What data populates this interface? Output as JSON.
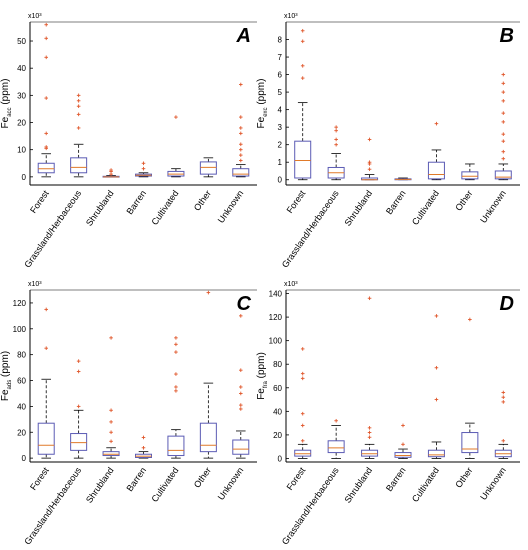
{
  "figure": {
    "type": "boxplot-grid",
    "box_color": "#5b5bb4",
    "median_color": "#e07a2a",
    "outlier_color": "#e0562a",
    "axis_color": "#000000"
  },
  "chart_data": [
    {
      "type": "box",
      "panel_label": "A",
      "ylabel_main": "Fe",
      "ylabel_sub": "acc",
      "ylabel_unit": " (ppm)",
      "scale_note": "x10³",
      "categories": [
        "Forest",
        "Grassland/Herbaceous",
        "Shrubland",
        "Barren",
        "Cultivated",
        "Other",
        "Unknown"
      ],
      "yticks": [
        0,
        10,
        20,
        30,
        40,
        50
      ],
      "ylim": [
        -3,
        57
      ],
      "boxes": [
        {
          "whisker_low": 0,
          "q1": 1.5,
          "median": 3.0,
          "q3": 5.0,
          "whisker_high": 8.5,
          "outliers": [
            10.5,
            11,
            16,
            29,
            44,
            51,
            56
          ]
        },
        {
          "whisker_low": 0,
          "q1": 1.5,
          "median": 3.5,
          "q3": 7.0,
          "whisker_high": 12.0,
          "outliers": [
            18,
            23,
            26,
            28,
            30
          ]
        },
        {
          "whisker_low": 0,
          "q1": 0,
          "median": 0,
          "q3": 0.2,
          "whisker_high": 0.5,
          "outliers": [
            1,
            2,
            2.5
          ]
        },
        {
          "whisker_low": 0,
          "q1": 0.3,
          "median": 0.6,
          "q3": 1.0,
          "whisker_high": 1.5,
          "outliers": [
            3,
            5
          ]
        },
        {
          "whisker_low": 0,
          "q1": 0.3,
          "median": 1.0,
          "q3": 2.0,
          "whisker_high": 3.0,
          "outliers": [
            22
          ]
        },
        {
          "whisker_low": 0,
          "q1": 1.0,
          "median": 3.5,
          "q3": 5.5,
          "whisker_high": 7.0,
          "outliers": []
        },
        {
          "whisker_low": 0,
          "q1": 0.3,
          "median": 1.0,
          "q3": 3.0,
          "whisker_high": 4.5,
          "outliers": [
            6,
            8,
            10,
            12,
            16,
            18,
            22,
            34
          ]
        }
      ]
    },
    {
      "type": "box",
      "panel_label": "B",
      "ylabel_main": "Fe",
      "ylabel_sub": "exc",
      "ylabel_unit": " (ppm)",
      "scale_note": "x10³",
      "categories": [
        "Forest",
        "Grassland/Herbaceous",
        "Shrubland",
        "Barren",
        "Cultivated",
        "Other",
        "Unknown"
      ],
      "yticks": [
        0,
        1,
        2,
        3,
        4,
        5,
        6,
        7,
        8
      ],
      "ylim": [
        -0.3,
        9.0
      ],
      "boxes": [
        {
          "whisker_low": 0,
          "q1": 0.1,
          "median": 1.1,
          "q3": 2.2,
          "whisker_high": 4.4,
          "outliers": [
            5.8,
            6.5,
            7.9,
            8.5
          ]
        },
        {
          "whisker_low": 0,
          "q1": 0.1,
          "median": 0.4,
          "q3": 0.7,
          "whisker_high": 1.5,
          "outliers": [
            2.0,
            2.3,
            2.8,
            3.0
          ]
        },
        {
          "whisker_low": 0,
          "q1": 0,
          "median": 0,
          "q3": 0.1,
          "whisker_high": 0.3,
          "outliers": [
            0.6,
            0.9,
            1.0,
            2.3
          ]
        },
        {
          "whisker_low": 0,
          "q1": 0,
          "median": 0.02,
          "q3": 0.05,
          "whisker_high": 0.1,
          "outliers": []
        },
        {
          "whisker_low": 0,
          "q1": 0.05,
          "median": 0.3,
          "q3": 1.0,
          "whisker_high": 1.7,
          "outliers": [
            3.2
          ]
        },
        {
          "whisker_low": 0,
          "q1": 0.05,
          "median": 0.2,
          "q3": 0.45,
          "whisker_high": 0.9,
          "outliers": []
        },
        {
          "whisker_low": 0,
          "q1": 0.05,
          "median": 0.15,
          "q3": 0.5,
          "whisker_high": 0.9,
          "outliers": [
            1.2,
            1.6,
            2.2,
            2.6,
            3.3,
            3.8,
            4.5,
            5.0,
            5.5,
            6.0
          ]
        }
      ]
    },
    {
      "type": "box",
      "panel_label": "C",
      "ylabel_main": "Fe",
      "ylabel_sub": "ads",
      "ylabel_unit": " (ppm)",
      "scale_note": "x10³",
      "categories": [
        "Forest",
        "Grassland/Herbaceous",
        "Shrubland",
        "Barren",
        "Cultivated",
        "Other",
        "Unknown"
      ],
      "yticks": [
        0,
        20,
        40,
        60,
        80,
        100,
        120
      ],
      "ylim": [
        -3,
        130
      ],
      "boxes": [
        {
          "whisker_low": 0,
          "q1": 3,
          "median": 10,
          "q3": 27,
          "whisker_high": 61,
          "outliers": [
            85,
            115
          ]
        },
        {
          "whisker_low": 0,
          "q1": 6,
          "median": 12,
          "q3": 19,
          "whisker_high": 37,
          "outliers": [
            40,
            67,
            75
          ]
        },
        {
          "whisker_low": 0,
          "q1": 2,
          "median": 3,
          "q3": 5,
          "whisker_high": 8,
          "outliers": [
            13,
            20,
            28,
            37,
            93
          ]
        },
        {
          "whisker_low": 0,
          "q1": 0.5,
          "median": 1.5,
          "q3": 3,
          "whisker_high": 5,
          "outliers": [
            8,
            16
          ]
        },
        {
          "whisker_low": 0,
          "q1": 2,
          "median": 6,
          "q3": 17,
          "whisker_high": 22,
          "outliers": [
            52,
            55,
            65,
            82,
            88,
            93
          ]
        },
        {
          "whisker_low": 0,
          "q1": 5,
          "median": 10,
          "q3": 27,
          "whisker_high": 58,
          "outliers": [
            128
          ]
        },
        {
          "whisker_low": 0,
          "q1": 3,
          "median": 7,
          "q3": 14,
          "whisker_high": 21,
          "outliers": [
            38,
            41,
            50,
            55,
            68,
            110
          ]
        }
      ]
    },
    {
      "type": "box",
      "panel_label": "D",
      "ylabel_main": "Fe",
      "ylabel_sub": "fra",
      "ylabel_unit": " (ppm)",
      "scale_note": "x10³",
      "categories": [
        "Forest",
        "Grassland/Herbaceous",
        "Shrubland",
        "Barren",
        "Cultivated",
        "Other",
        "Unknown"
      ],
      "yticks": [
        0,
        20,
        40,
        60,
        80,
        100,
        120,
        140
      ],
      "ylim": [
        -3,
        143
      ],
      "boxes": [
        {
          "whisker_low": 0,
          "q1": 2,
          "median": 4,
          "q3": 7,
          "whisker_high": 12,
          "outliers": [
            15,
            28,
            38,
            68,
            72,
            93
          ]
        },
        {
          "whisker_low": 0,
          "q1": 5,
          "median": 9,
          "q3": 15,
          "whisker_high": 28,
          "outliers": [
            32
          ]
        },
        {
          "whisker_low": 0,
          "q1": 2,
          "median": 4,
          "q3": 7,
          "whisker_high": 12,
          "outliers": [
            18,
            22,
            26,
            136
          ]
        },
        {
          "whisker_low": 0,
          "q1": 1,
          "median": 2.5,
          "q3": 5,
          "whisker_high": 8,
          "outliers": [
            12,
            28
          ]
        },
        {
          "whisker_low": 0,
          "q1": 1.5,
          "median": 3,
          "q3": 7,
          "whisker_high": 14,
          "outliers": [
            50,
            77,
            121
          ]
        },
        {
          "whisker_low": 0,
          "q1": 5,
          "median": 8,
          "q3": 22,
          "whisker_high": 30,
          "outliers": [
            118
          ]
        },
        {
          "whisker_low": 0,
          "q1": 1.5,
          "median": 4,
          "q3": 7,
          "whisker_high": 12,
          "outliers": [
            15,
            48,
            52,
            56
          ]
        }
      ]
    }
  ]
}
